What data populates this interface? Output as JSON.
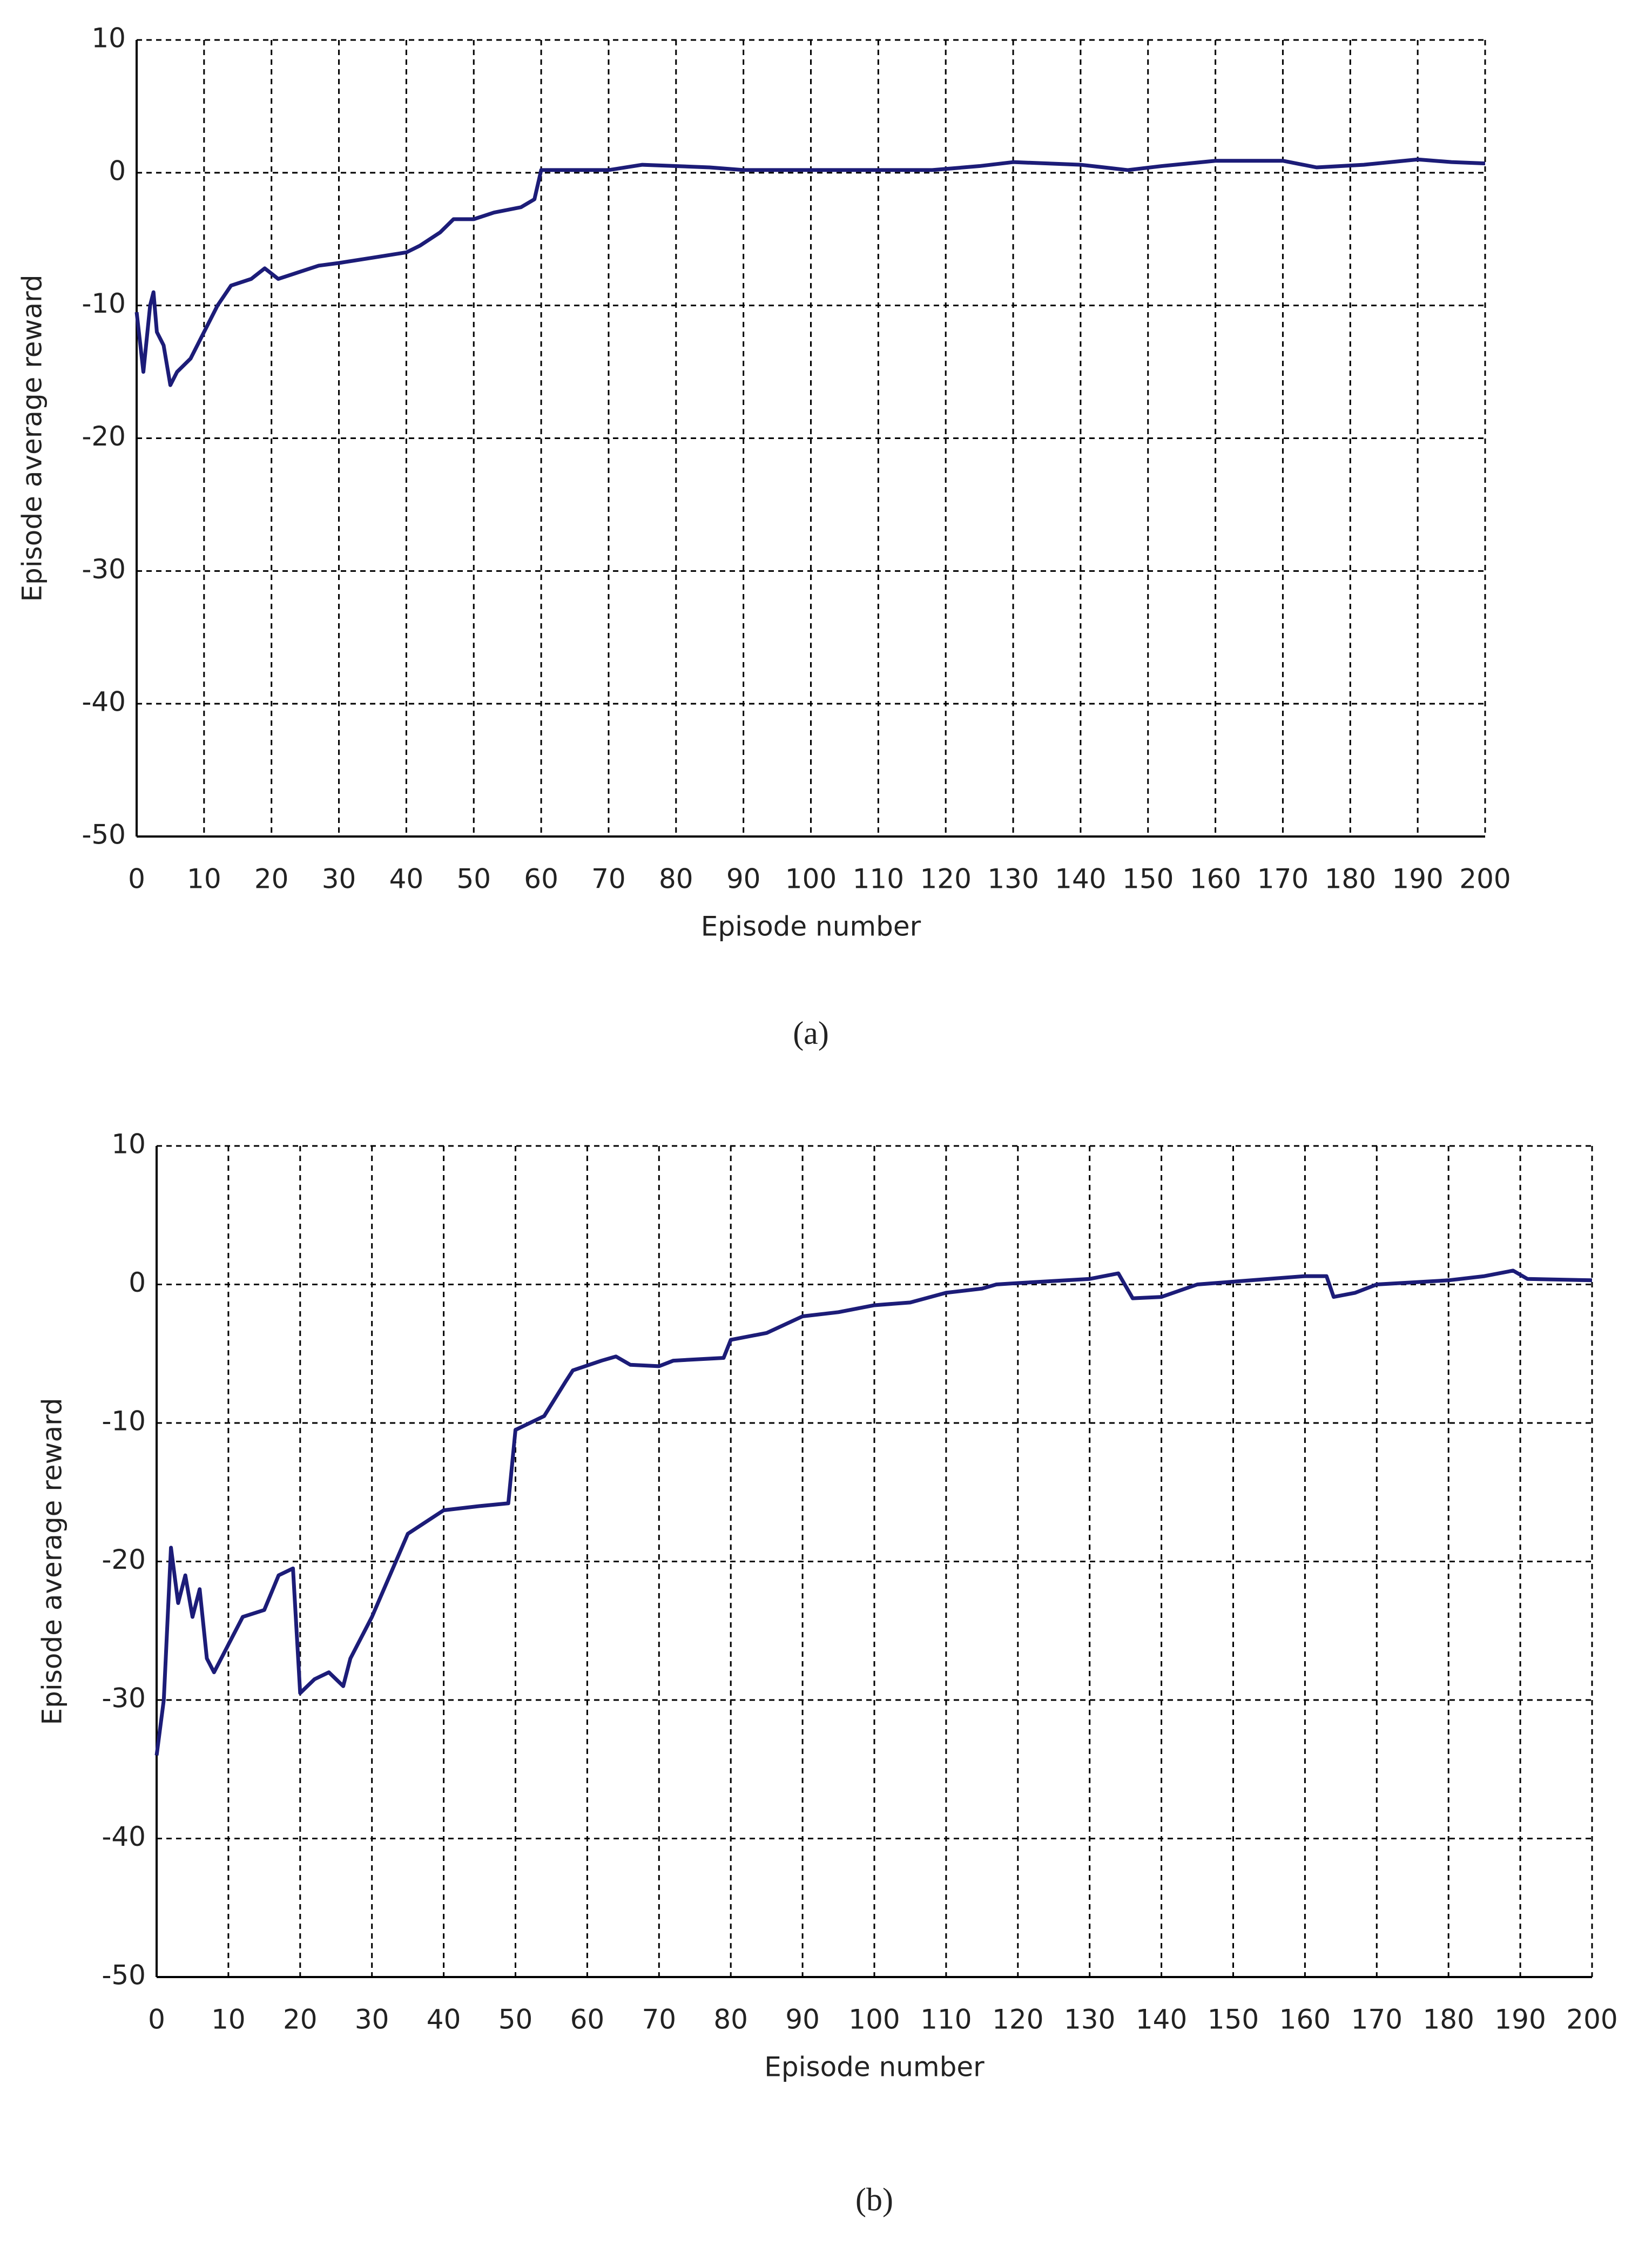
{
  "chart_data": [
    {
      "type": "line",
      "caption": "(a)",
      "x_label": "Episode number",
      "y_label": "Episode average reward",
      "xlim": [
        0,
        200
      ],
      "ylim": [
        -50,
        10
      ],
      "xticks": [
        0,
        10,
        20,
        30,
        40,
        50,
        60,
        70,
        80,
        90,
        100,
        110,
        120,
        130,
        140,
        150,
        160,
        170,
        180,
        190,
        200
      ],
      "yticks": [
        -50,
        -40,
        -30,
        -20,
        -10,
        0,
        10
      ],
      "grid": true,
      "series": [
        {
          "name": "Episode average reward",
          "color": "#1c1c78",
          "x": [
            0,
            1,
            2,
            2.5,
            3,
            4,
            5,
            6,
            8,
            10,
            12,
            14,
            17,
            19,
            21,
            24,
            27,
            30,
            35,
            40,
            42,
            45,
            47,
            50,
            53,
            57,
            59,
            60,
            70,
            75,
            85,
            90,
            100,
            110,
            118,
            125,
            130,
            140,
            147,
            152,
            160,
            170,
            175,
            182,
            190,
            195,
            200
          ],
          "values": [
            -10.5,
            -15,
            -10,
            -9,
            -12,
            -13,
            -16,
            -15,
            -14,
            -12,
            -10,
            -8.5,
            -8,
            -7.2,
            -8,
            -7.5,
            -7,
            -6.8,
            -6.4,
            -6,
            -5.5,
            -4.5,
            -3.5,
            -3.5,
            -3,
            -2.6,
            -2,
            0.2,
            0.2,
            0.6,
            0.4,
            0.2,
            0.2,
            0.2,
            0.2,
            0.5,
            0.8,
            0.6,
            0.2,
            0.5,
            0.9,
            0.9,
            0.4,
            0.6,
            1,
            0.8,
            0.7
          ]
        }
      ]
    },
    {
      "type": "line",
      "caption": "(b)",
      "x_label": "Episode number",
      "y_label": "Episode average reward",
      "xlim": [
        0,
        200
      ],
      "ylim": [
        -50,
        10
      ],
      "xticks": [
        0,
        10,
        20,
        30,
        40,
        50,
        60,
        70,
        80,
        90,
        100,
        110,
        120,
        130,
        140,
        150,
        160,
        170,
        180,
        190,
        200
      ],
      "yticks": [
        -50,
        -40,
        -30,
        -20,
        -10,
        0,
        10
      ],
      "grid": true,
      "series": [
        {
          "name": "Episode average reward",
          "color": "#1c1c78",
          "x": [
            0,
            1,
            2,
            3,
            4,
            5,
            6,
            7,
            8,
            10,
            12,
            15,
            17,
            19,
            20,
            22,
            24,
            26,
            27,
            30,
            35,
            40,
            45,
            49,
            50,
            52,
            54,
            57,
            58,
            62,
            64,
            66,
            70,
            72,
            79,
            80,
            85,
            90,
            95,
            100,
            105,
            110,
            115,
            117,
            120,
            130,
            134,
            136,
            140,
            145,
            150,
            160,
            163,
            164,
            167,
            170,
            180,
            185,
            189,
            191,
            200
          ],
          "values": [
            -34,
            -30,
            -19,
            -23,
            -21,
            -24,
            -22,
            -27,
            -28,
            -26,
            -24,
            -23.5,
            -21,
            -20.5,
            -29.5,
            -28.5,
            -28,
            -29,
            -27,
            -24,
            -18,
            -16.3,
            -16,
            -15.8,
            -10.5,
            -10,
            -9.5,
            -7,
            -6.2,
            -5.5,
            -5.2,
            -5.8,
            -5.9,
            -5.5,
            -5.3,
            -4,
            -3.5,
            -2.3,
            -2,
            -1.5,
            -1.3,
            -0.6,
            -0.3,
            0,
            0.1,
            0.4,
            0.8,
            -1,
            -0.9,
            0,
            0.2,
            0.6,
            0.6,
            -0.9,
            -0.6,
            0,
            0.3,
            0.6,
            1,
            0.4,
            0.3
          ]
        }
      ]
    }
  ]
}
